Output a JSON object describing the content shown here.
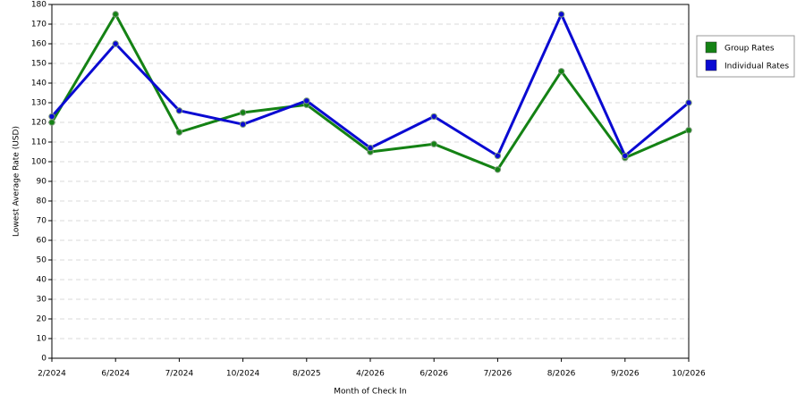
{
  "chart_data": {
    "type": "line",
    "x_label": "Month of Check In",
    "y_label": "Lowest Average Rate (USD)",
    "categories": [
      "2/2024",
      "6/2024",
      "7/2024",
      "10/2024",
      "8/2025",
      "4/2026",
      "6/2026",
      "7/2026",
      "8/2026",
      "9/2026",
      "10/2026"
    ],
    "series": [
      {
        "name": "Group Rates",
        "color": "#148214",
        "values": [
          120,
          175,
          115,
          125,
          129,
          105,
          109,
          96,
          146,
          102,
          116
        ]
      },
      {
        "name": "Individual Rates",
        "color": "#0a0ad2",
        "values": [
          123,
          160,
          126,
          119,
          131,
          107,
          123,
          103,
          175,
          103,
          130
        ]
      }
    ],
    "ylim": [
      0,
      180
    ],
    "yticks": [
      0,
      10,
      20,
      30,
      40,
      50,
      60,
      70,
      80,
      90,
      100,
      110,
      120,
      130,
      140,
      150,
      160,
      170,
      180
    ],
    "grid": true
  }
}
